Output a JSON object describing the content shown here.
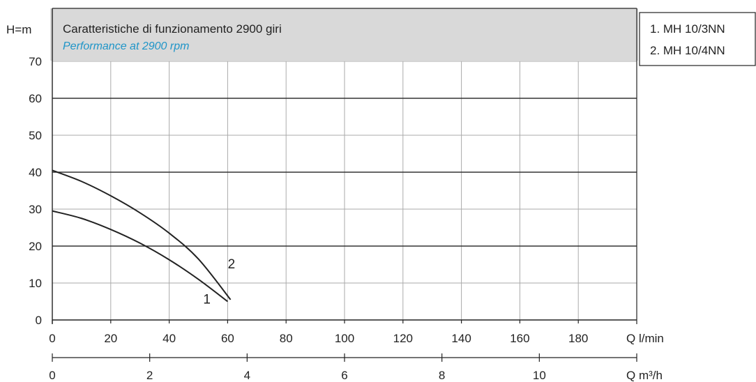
{
  "chart_data": {
    "type": "line",
    "title": "Caratteristiche di funzionamento 2900 giri",
    "subtitle": "Performance at 2900 rpm",
    "ylabel": "H=m",
    "xlabel": "Q l/min",
    "x2label": "Q m³/h",
    "xlim": [
      0,
      200
    ],
    "ylim": [
      0,
      70
    ],
    "x_ticks": [
      "0",
      "20",
      "40",
      "60",
      "80",
      "100",
      "120",
      "140",
      "160",
      "180"
    ],
    "x2_ticks": [
      "0",
      "2",
      "4",
      "6",
      "8",
      "10"
    ],
    "x2_factor": 0.06,
    "y_ticks": [
      "0",
      "10",
      "20",
      "30",
      "40",
      "50",
      "60",
      "70"
    ],
    "grid": true,
    "legend": {
      "placement": "top-right",
      "items": [
        "1. MH 10/3NN",
        "2. MH 10/4NN"
      ]
    },
    "series": [
      {
        "label": "1",
        "color": "#222222",
        "x": [
          0,
          10,
          20,
          30,
          40,
          50,
          60
        ],
        "y": [
          29.5,
          27.5,
          24.5,
          20.8,
          16.3,
          11.0,
          5.0
        ]
      },
      {
        "label": "2",
        "color": "#222222",
        "x": [
          0,
          10,
          20,
          30,
          40,
          50,
          61
        ],
        "y": [
          40.5,
          37.5,
          33.6,
          29.0,
          23.5,
          16.5,
          5.5
        ]
      }
    ],
    "colors": {
      "header_bg": "#d9d9d9",
      "subtitle": "#1f95c8",
      "axis": "#222222"
    }
  }
}
